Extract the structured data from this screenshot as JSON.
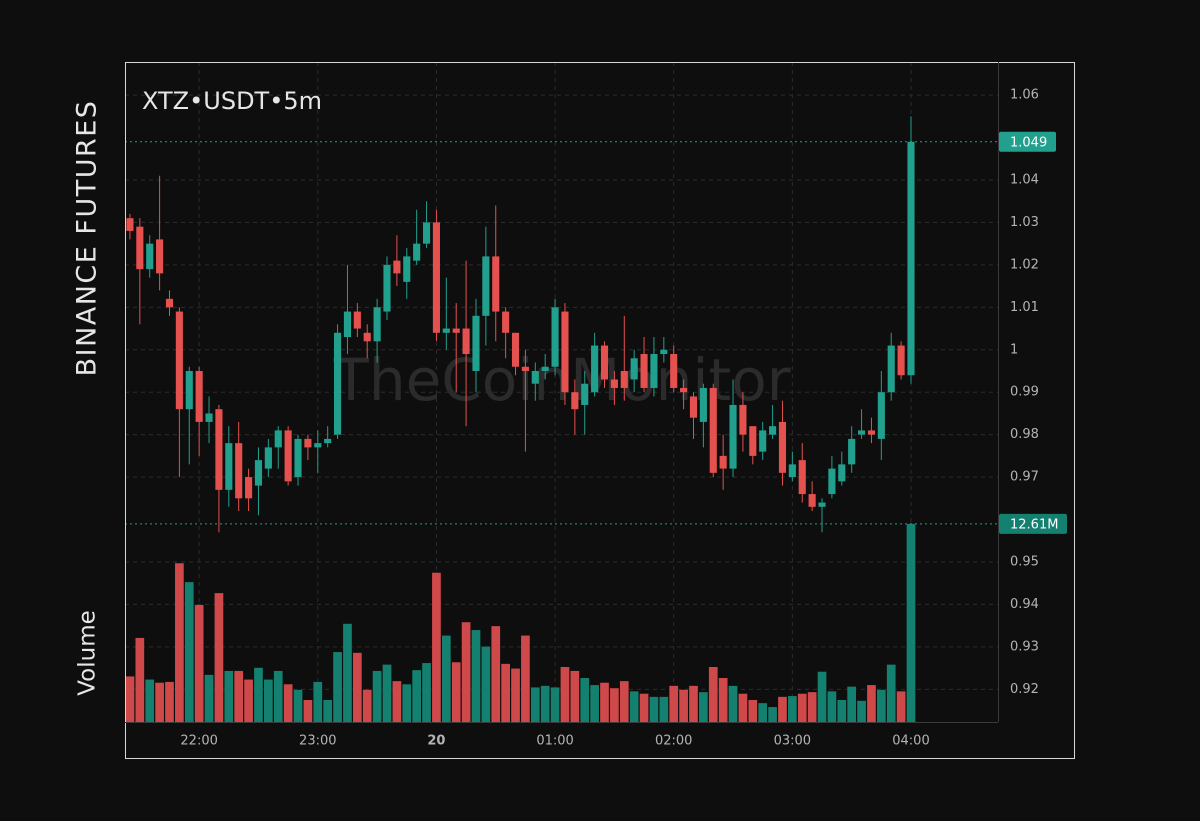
{
  "chart_data": {
    "type": "candlestick",
    "title": "XTZ•USDT•5m",
    "exchange_label": "BINANCE FUTURES",
    "volume_label": "Volume",
    "watermark": "TheCoinMonitor",
    "open": [
      1.031,
      1.029,
      1.019,
      1.026,
      1.012,
      1.009,
      0.986,
      0.995,
      0.983,
      0.986,
      0.967,
      0.978,
      0.97,
      0.968,
      0.972,
      0.977,
      0.981,
      0.97,
      0.979,
      0.977,
      0.978,
      0.98,
      1.003,
      1.009,
      1.004,
      1.002,
      1.009,
      1.021,
      1.016,
      1.021,
      1.025,
      1.03,
      1.004,
      1.005,
      1.005,
      0.995,
      1.008,
      1.022,
      1.009,
      1.004,
      0.996,
      0.992,
      0.995,
      0.996,
      1.009,
      0.99,
      0.987,
      0.99,
      1.001,
      0.993,
      0.995,
      0.993,
      0.999,
      0.991,
      0.999,
      0.999,
      0.991,
      0.989,
      0.983,
      0.991,
      0.975,
      0.972,
      0.987,
      0.982,
      0.976,
      0.98,
      0.983,
      0.97,
      0.974,
      0.966,
      0.963,
      0.966,
      0.969,
      0.973,
      0.98,
      0.981,
      0.979,
      0.99,
      1.001,
      0.994
    ],
    "high": [
      1.032,
      1.031,
      1.027,
      1.041,
      1.014,
      1.01,
      0.996,
      0.996,
      0.989,
      0.987,
      0.982,
      0.983,
      0.972,
      0.977,
      0.979,
      0.982,
      0.982,
      0.98,
      0.98,
      0.981,
      0.982,
      1.006,
      1.02,
      1.011,
      1.006,
      1.012,
      1.022,
      1.027,
      1.024,
      1.033,
      1.035,
      1.033,
      1.017,
      1.011,
      1.021,
      1.012,
      1.029,
      1.034,
      1.01,
      1.004,
      1.0,
      0.997,
      0.999,
      1.012,
      1.011,
      0.993,
      0.995,
      1.004,
      1.002,
      0.995,
      1.008,
      1.0,
      1.003,
      1.003,
      1.003,
      1.001,
      0.993,
      0.99,
      0.992,
      0.992,
      0.98,
      0.993,
      0.99,
      0.982,
      0.983,
      0.987,
      0.988,
      0.976,
      0.978,
      0.969,
      0.965,
      0.975,
      0.976,
      0.982,
      0.986,
      0.984,
      0.995,
      1.004,
      1.002,
      1.055
    ],
    "low": [
      1.026,
      1.006,
      1.017,
      1.014,
      1.008,
      0.97,
      0.973,
      0.975,
      0.978,
      0.957,
      0.963,
      0.962,
      0.962,
      0.961,
      0.97,
      0.972,
      0.968,
      0.968,
      0.974,
      0.971,
      0.977,
      0.979,
      0.999,
      1.003,
      0.998,
      0.997,
      1.007,
      1.015,
      1.012,
      1.02,
      1.024,
      1.002,
      1.0,
      0.99,
      0.982,
      0.99,
      1.001,
      1.002,
      0.998,
      0.994,
      0.976,
      0.988,
      0.993,
      0.994,
      0.987,
      0.98,
      0.98,
      0.989,
      0.991,
      0.987,
      0.988,
      0.99,
      0.99,
      0.989,
      0.997,
      0.99,
      0.986,
      0.979,
      0.977,
      0.97,
      0.967,
      0.97,
      0.976,
      0.973,
      0.974,
      0.979,
      0.968,
      0.969,
      0.964,
      0.962,
      0.957,
      0.965,
      0.968,
      0.971,
      0.979,
      0.978,
      0.974,
      0.988,
      0.993,
      0.992
    ],
    "close": [
      1.028,
      1.019,
      1.025,
      1.018,
      1.01,
      0.986,
      0.995,
      0.983,
      0.985,
      0.967,
      0.978,
      0.965,
      0.965,
      0.974,
      0.977,
      0.981,
      0.969,
      0.979,
      0.977,
      0.978,
      0.979,
      1.004,
      1.009,
      1.005,
      1.002,
      1.01,
      1.02,
      1.018,
      1.022,
      1.025,
      1.03,
      1.004,
      1.005,
      1.004,
      0.999,
      1.008,
      1.022,
      1.009,
      1.004,
      0.996,
      0.995,
      0.995,
      0.996,
      1.01,
      0.99,
      0.986,
      0.992,
      1.001,
      0.993,
      0.991,
      0.991,
      0.998,
      0.991,
      0.999,
      1.0,
      0.991,
      0.99,
      0.984,
      0.991,
      0.971,
      0.972,
      0.987,
      0.98,
      0.975,
      0.981,
      0.982,
      0.971,
      0.973,
      0.966,
      0.963,
      0.964,
      0.972,
      0.973,
      0.979,
      0.981,
      0.98,
      0.99,
      1.001,
      0.994,
      1.049
    ],
    "volume": {
      "values": [
        2.9,
        5.35,
        2.7,
        2.5,
        2.55,
        10.1,
        8.9,
        7.45,
        3.0,
        8.2,
        3.25,
        3.25,
        2.7,
        3.45,
        2.7,
        3.25,
        2.4,
        2.05,
        1.4,
        2.55,
        1.4,
        4.45,
        6.25,
        4.4,
        2.05,
        3.25,
        3.65,
        2.6,
        2.4,
        3.3,
        3.75,
        9.5,
        5.5,
        3.8,
        6.35,
        5.85,
        4.8,
        6.1,
        3.7,
        3.4,
        5.5,
        2.2,
        2.3,
        2.2,
        3.5,
        3.25,
        2.8,
        2.35,
        2.5,
        2.15,
        2.6,
        1.95,
        1.8,
        1.6,
        1.6,
        2.3,
        2.05,
        2.3,
        1.9,
        3.5,
        2.8,
        2.3,
        1.8,
        1.4,
        1.2,
        0.95,
        1.6,
        1.65,
        1.8,
        1.9,
        3.2,
        1.95,
        1.4,
        2.25,
        1.35,
        2.35,
        2.05,
        3.65,
        1.95,
        12.61
      ],
      "value_labels": [
        null,
        null,
        null,
        null,
        null,
        null,
        null,
        null,
        null,
        null,
        null,
        null,
        null,
        null,
        null,
        null,
        null,
        null,
        null,
        null,
        null,
        null,
        null,
        null,
        null,
        null,
        null,
        null,
        null,
        null,
        null,
        null,
        null,
        null,
        null,
        null,
        null,
        null,
        null,
        null,
        null,
        null,
        null,
        null,
        null,
        null,
        null,
        null,
        null,
        null,
        null,
        null,
        null,
        null,
        null,
        null,
        null,
        null,
        null,
        null,
        null,
        null,
        null,
        null,
        null,
        null,
        null,
        null,
        null,
        null,
        null,
        null,
        null,
        null,
        null,
        null,
        null,
        null,
        null,
        "12.61M"
      ]
    },
    "ylim": [
      0.9123,
      1.0678
    ],
    "yticks": [
      0.92,
      0.93,
      0.94,
      0.95,
      0.97,
      0.98,
      0.99,
      1,
      1.01,
      1.02,
      1.03,
      1.04,
      1.06
    ],
    "volume_ylim": [
      0,
      42
    ],
    "xlim": [
      -0.5,
      87.8
    ],
    "xticks": [
      {
        "value": 7,
        "label": "22:00"
      },
      {
        "value": 19,
        "label": "23:00"
      },
      {
        "value": 31,
        "label": "20",
        "bold": true
      },
      {
        "value": 43,
        "label": "01:00"
      },
      {
        "value": 55,
        "label": "02:00"
      },
      {
        "value": 67,
        "label": "03:00"
      },
      {
        "value": 79,
        "label": "04:00"
      }
    ],
    "grid": true,
    "up_color": "#22a08e",
    "down_color": "#e4514e",
    "volume_up_color": "#14806f",
    "volume_down_color": "#d0494a"
  }
}
